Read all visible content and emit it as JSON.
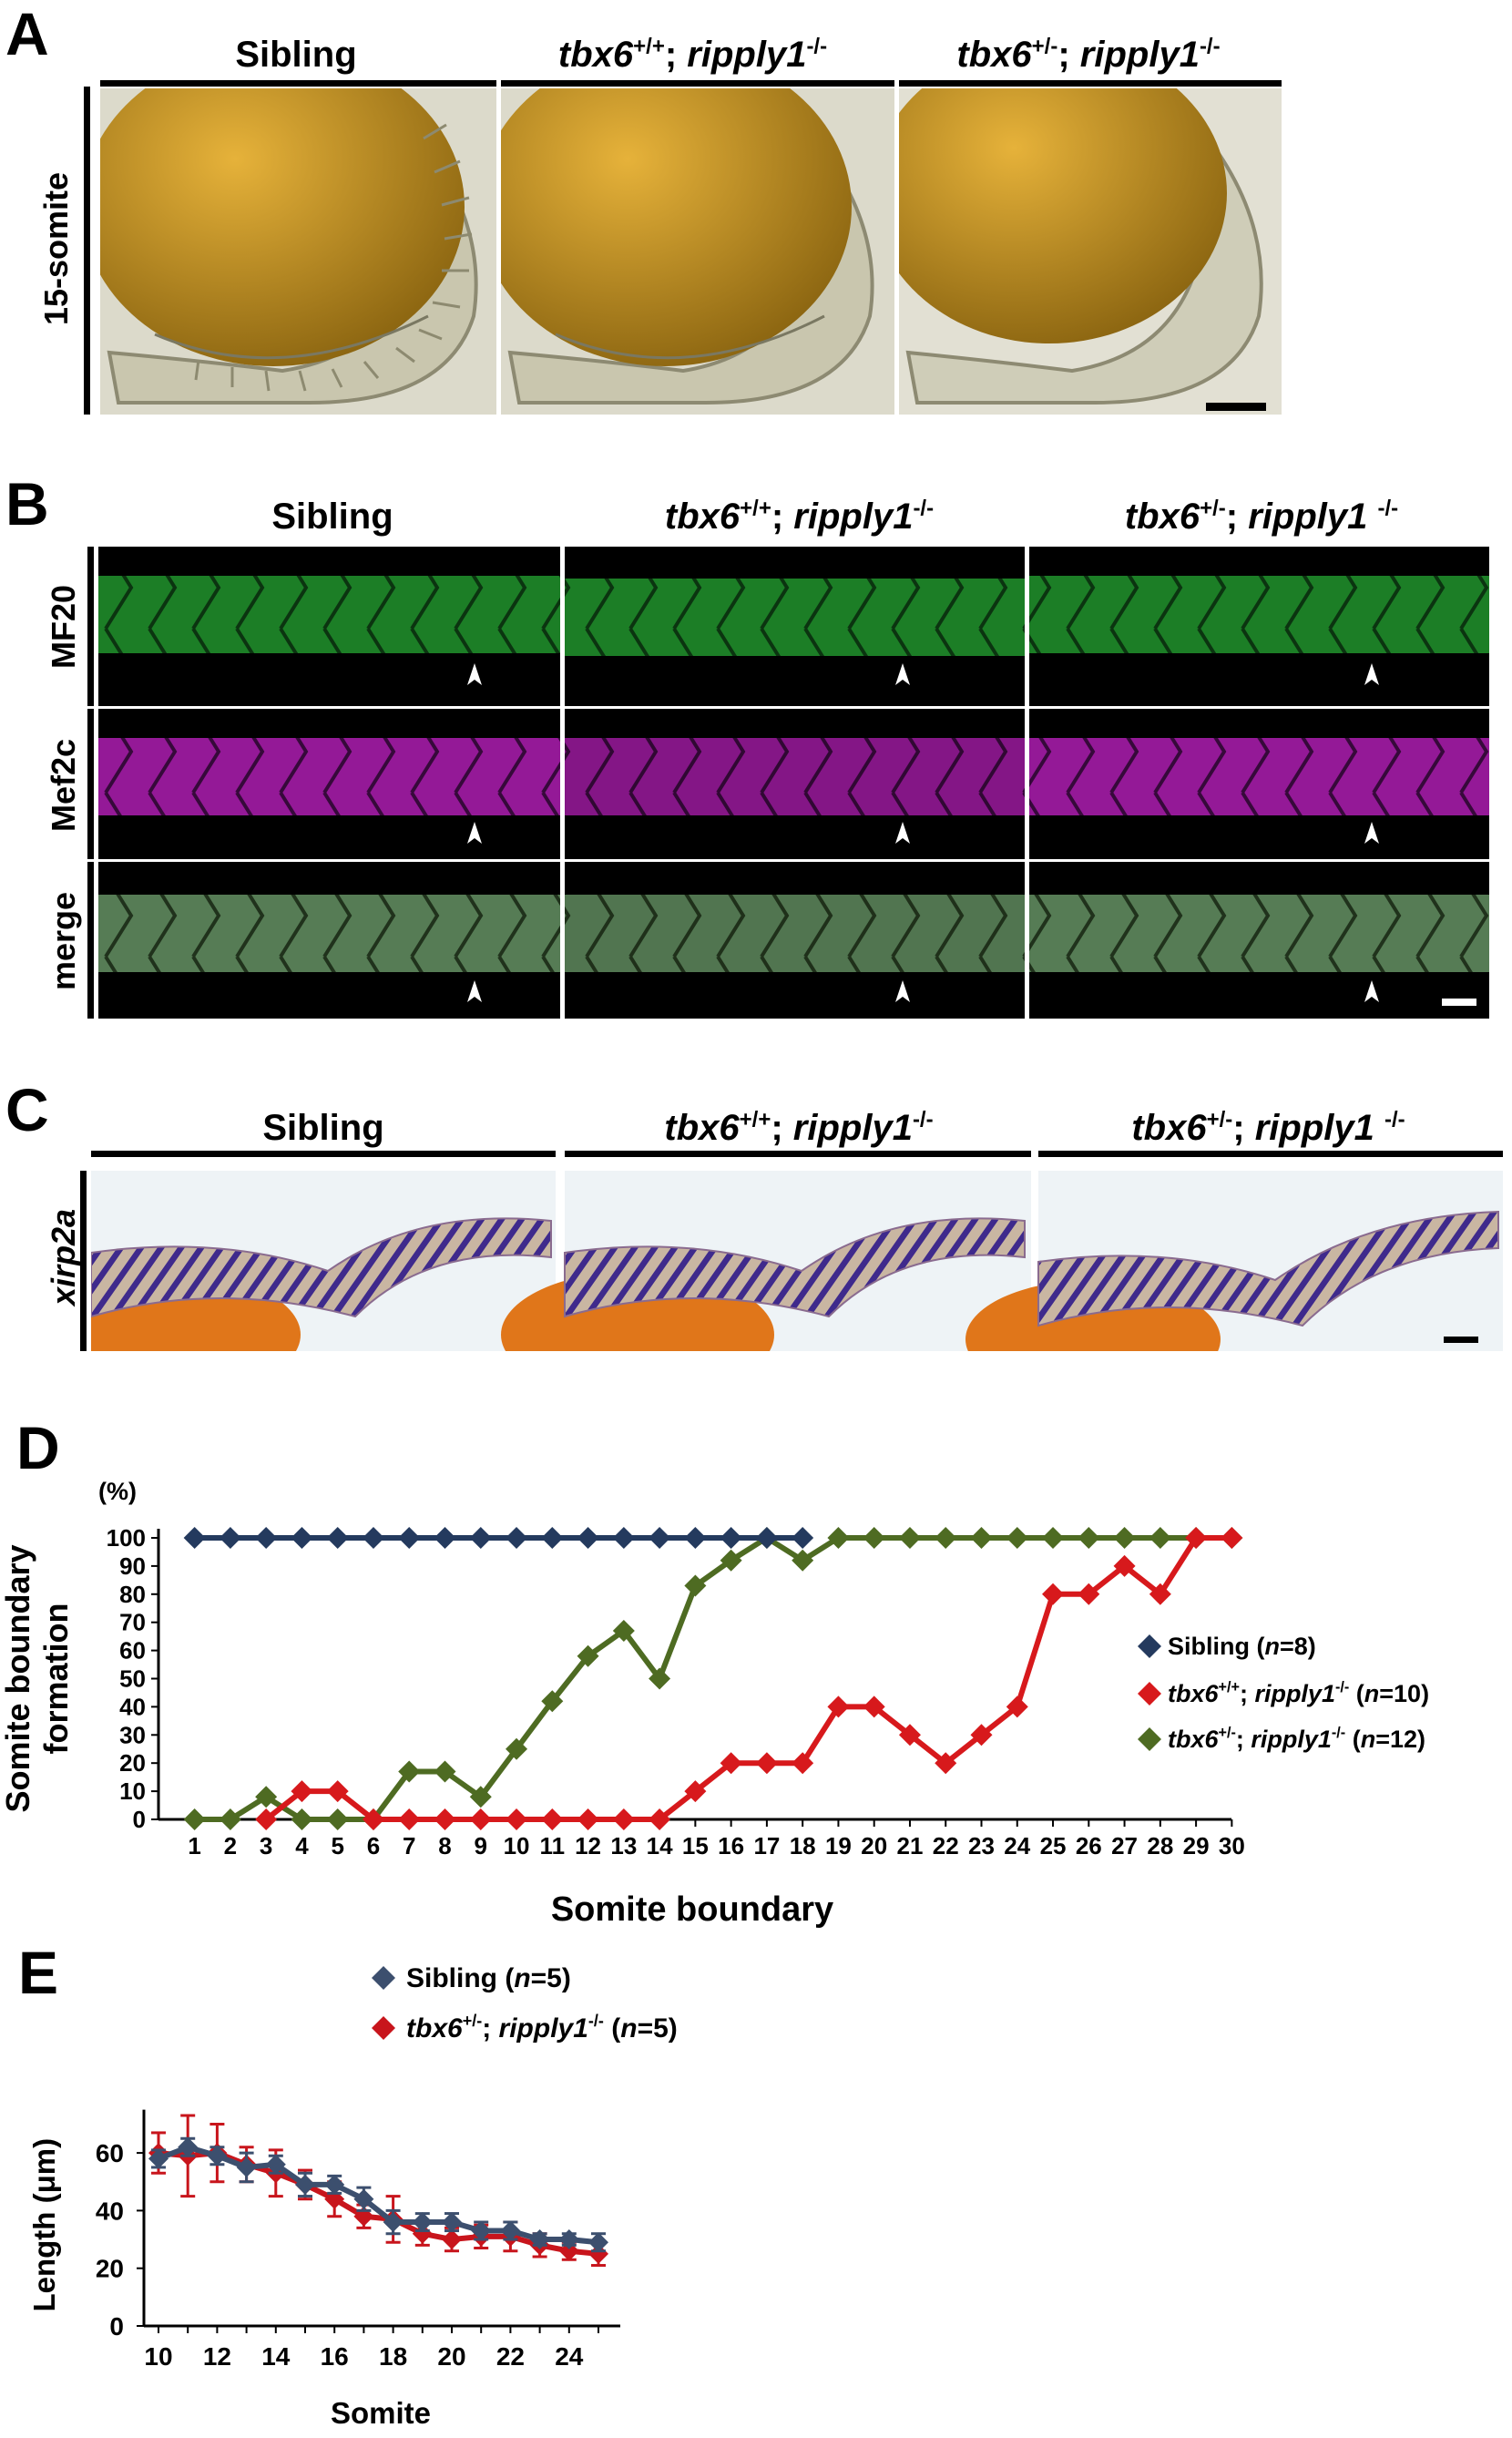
{
  "panels": {
    "A": {
      "letter": "A",
      "columns": [
        {
          "pre": "Sibling",
          "gene1": "",
          "sup1": "",
          "sep": "",
          "gene2": "",
          "sup2": ""
        },
        {
          "pre": "",
          "gene1": "tbx6",
          "sup1": "+/+",
          "sep": "; ",
          "gene2": "ripply1",
          "sup2": "-/-"
        },
        {
          "pre": "",
          "gene1": "tbx6",
          "sup1": "+/-",
          "sep": "; ",
          "gene2": "ripply1",
          "sup2": "-/-"
        }
      ],
      "row_label": "15-somite"
    },
    "B": {
      "letter": "B",
      "columns": [
        {
          "pre": "Sibling",
          "gene1": "",
          "sup1": "",
          "sep": "",
          "gene2": "",
          "sup2": ""
        },
        {
          "pre": "",
          "gene1": "tbx6",
          "sup1": "+/+",
          "sep": "; ",
          "gene2": "ripply1",
          "sup2": "-/-"
        },
        {
          "pre": "",
          "gene1": "tbx6",
          "sup1": "+/-",
          "sep": "; ",
          "gene2": "ripply1 ",
          "sup2": "-/-"
        }
      ],
      "rows": [
        "MF20",
        "Mef2c",
        "merge"
      ]
    },
    "C": {
      "letter": "C",
      "columns": [
        {
          "pre": "Sibling",
          "gene1": "",
          "sup1": "",
          "sep": "",
          "gene2": "",
          "sup2": ""
        },
        {
          "pre": "",
          "gene1": "tbx6",
          "sup1": "+/+",
          "sep": "; ",
          "gene2": "ripply1",
          "sup2": "-/-"
        },
        {
          "pre": "",
          "gene1": "tbx6",
          "sup1": "+/-",
          "sep": "; ",
          "gene2": "ripply1 ",
          "sup2": "-/-"
        }
      ],
      "row_label": "xirp2a"
    },
    "D": {
      "letter": "D"
    },
    "E": {
      "letter": "E"
    }
  },
  "chart_data": [
    {
      "panel": "D",
      "type": "line",
      "xlabel": "Somite boundary",
      "ylabel": "Somite boundary formation",
      "yunit": "(%)",
      "x": [
        1,
        2,
        3,
        4,
        5,
        6,
        7,
        8,
        9,
        10,
        11,
        12,
        13,
        14,
        15,
        16,
        17,
        18,
        19,
        20,
        21,
        22,
        23,
        24,
        25,
        26,
        27,
        28,
        29,
        30
      ],
      "ylim": [
        0,
        100
      ],
      "yticks": [
        0,
        10,
        20,
        30,
        40,
        50,
        60,
        70,
        80,
        90,
        100
      ],
      "series": [
        {
          "name": "Sibling",
          "n_label": "n",
          "n_value": "=8",
          "color": "#243a5e",
          "x": [
            1,
            2,
            3,
            4,
            5,
            6,
            7,
            8,
            9,
            10,
            11,
            12,
            13,
            14,
            15,
            16,
            17,
            18
          ],
          "values": [
            100,
            100,
            100,
            100,
            100,
            100,
            100,
            100,
            100,
            100,
            100,
            100,
            100,
            100,
            100,
            100,
            100,
            100
          ]
        },
        {
          "name_gene1": "tbx6",
          "name_sup1": "+/+",
          "name_gene2": "ripply1",
          "name_sup2": "-/-",
          "n_label": "n",
          "n_value": "=10",
          "color": "#d7191c",
          "x": [
            3,
            4,
            5,
            6,
            7,
            8,
            9,
            10,
            11,
            12,
            13,
            14,
            15,
            16,
            17,
            18,
            19,
            20,
            21,
            22,
            23,
            24,
            25,
            26,
            27,
            28,
            29,
            30
          ],
          "values": [
            0,
            10,
            10,
            0,
            0,
            0,
            0,
            0,
            0,
            0,
            0,
            0,
            10,
            20,
            20,
            20,
            40,
            40,
            30,
            20,
            30,
            40,
            80,
            80,
            90,
            80,
            100,
            100
          ]
        },
        {
          "name_gene1": "tbx6",
          "name_sup1": "+/-",
          "name_gene2": "ripply1",
          "name_sup2": "-/-",
          "n_label": "n",
          "n_value": "=12",
          "color": "#4e6b22",
          "x": [
            1,
            2,
            3,
            4,
            5,
            6,
            7,
            8,
            9,
            10,
            11,
            12,
            13,
            14,
            15,
            16,
            17,
            18,
            19,
            20,
            21,
            22,
            23,
            24,
            25,
            26,
            27,
            28,
            29,
            30
          ],
          "values": [
            0,
            0,
            8,
            0,
            0,
            0,
            17,
            17,
            8,
            25,
            42,
            58,
            67,
            50,
            83,
            92,
            100,
            92,
            100,
            100,
            100,
            100,
            100,
            100,
            100,
            100,
            100,
            100,
            100,
            100
          ]
        }
      ]
    },
    {
      "panel": "E",
      "type": "line",
      "xlabel": "Somite",
      "ylabel": "Length (μm)",
      "x": [
        10,
        11,
        12,
        13,
        14,
        15,
        16,
        17,
        18,
        19,
        20,
        21,
        22,
        23,
        24,
        25
      ],
      "xticks": [
        10,
        12,
        14,
        16,
        18,
        20,
        22,
        24
      ],
      "ylim": [
        0,
        75
      ],
      "yticks": [
        0,
        20,
        40,
        60
      ],
      "series": [
        {
          "name": "Sibling",
          "n_label": "n",
          "n_value": "=5",
          "color": "#3c4f6e",
          "values": [
            58,
            62,
            59,
            55,
            56,
            49,
            49,
            44,
            36,
            36,
            36,
            33,
            33,
            30,
            30,
            29
          ],
          "error": [
            3,
            3,
            3,
            5,
            3,
            4,
            3,
            4,
            4,
            3,
            3,
            3,
            3,
            2,
            2,
            3
          ]
        },
        {
          "name_gene1": "tbx6",
          "name_sup1": "+/-",
          "name_gene2": "ripply1",
          "name_sup2": "-/-",
          "n_label": "n",
          "n_value": "=5",
          "color": "#c8151c",
          "values": [
            60,
            59,
            60,
            56,
            53,
            49,
            44,
            38,
            37,
            32,
            30,
            31,
            31,
            28,
            26,
            25
          ],
          "error": [
            7,
            14,
            10,
            6,
            8,
            5,
            6,
            4,
            8,
            4,
            4,
            4,
            5,
            4,
            3,
            4
          ]
        }
      ]
    }
  ],
  "colors": {
    "yolk": "#b58a1e",
    "tissue": "#d9d6c2",
    "mf20": "#2aa33a",
    "mef2c": "#b521b3",
    "stain_bg": "#eef3f6",
    "stain": "#3f2a8c",
    "yolk_orange": "#e0761a"
  }
}
